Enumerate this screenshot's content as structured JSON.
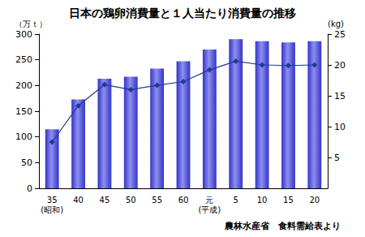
{
  "chart_data": {
    "type": "bar",
    "title": "日本の鶏卵消費量と１人当たり消費量の推移",
    "y_label": "（万ｔ）",
    "y2_label": "(kg)",
    "annotation": "農林水産省　食料需給表より",
    "categories": [
      "35\n(昭和)",
      "40",
      "45",
      "50",
      "55",
      "60",
      "元\n(平成)",
      "5",
      "10",
      "15",
      "20"
    ],
    "series": [
      {
        "type": "bar",
        "color": "#3333cc",
        "values": [
          115,
          173,
          213,
          217,
          233,
          247,
          270,
          290,
          286,
          284,
          286
        ]
      },
      {
        "type": "line",
        "axis": "y2",
        "color": "#1f3a93",
        "marker": "diamond",
        "line_style": "solid",
        "values": [
          7.5,
          13.4,
          16.8,
          16.0,
          16.7,
          17.3,
          19.2,
          20.6,
          20.0,
          19.9,
          20.0
        ]
      }
    ],
    "ylim": [
      0,
      300
    ],
    "yticks": [
      0,
      50,
      100,
      150,
      200,
      250,
      300
    ],
    "y2lim": [
      0,
      25
    ],
    "y2ticks": [
      5,
      10,
      15,
      20,
      25
    ],
    "grid": false,
    "data_labels": false
  }
}
